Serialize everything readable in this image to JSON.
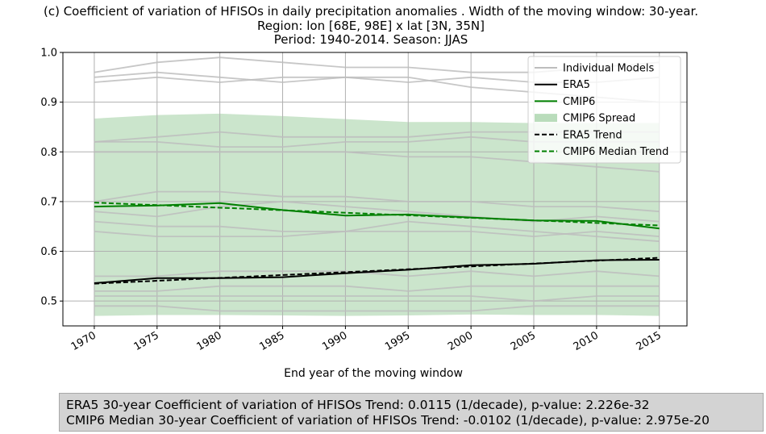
{
  "chart_data": {
    "type": "line",
    "title_lines": [
      "(c) Coefficient of variation of HFISOs in daily precipitation anomalies . Width of the moving window: 30-year.",
      "Region: lon [68E, 98E] x lat [3N, 35N]",
      "Period: 1940-2014. Season: JJAS"
    ],
    "xlabel": "End year of the moving window",
    "ylabel": "",
    "xlim": [
      1967.5,
      2017.2
    ],
    "ylim": [
      0.45,
      1.0
    ],
    "xticks": [
      1970,
      1975,
      1980,
      1985,
      1990,
      1995,
      2000,
      2005,
      2010,
      2015
    ],
    "yticks": [
      0.5,
      0.6,
      0.7,
      0.8,
      0.9,
      1.0
    ],
    "ytick_labels": [
      "0.5",
      "0.6",
      "0.7",
      "0.8",
      "0.9",
      "1.0"
    ],
    "grid": true,
    "legend_position": "top-right",
    "legend": [
      "Individual Models",
      "ERA5",
      "CMIP6",
      "CMIP6 Spread",
      "ERA5 Trend",
      "CMIP6 Median Trend"
    ],
    "colors": {
      "individual": "#bdbdbd",
      "era5": "#000000",
      "cmip6": "#008000",
      "spread": "#b9dcbb",
      "grid": "#b0b0b0"
    },
    "x_years": [
      1970,
      1975,
      1980,
      1985,
      1990,
      1995,
      2000,
      2005,
      2010,
      2015
    ],
    "series": [
      {
        "name": "ERA5",
        "values": [
          0.536,
          0.546,
          0.546,
          0.548,
          0.556,
          0.563,
          0.572,
          0.575,
          0.582,
          0.583
        ]
      },
      {
        "name": "CMIP6",
        "values": [
          0.69,
          0.692,
          0.697,
          0.683,
          0.672,
          0.674,
          0.668,
          0.662,
          0.661,
          0.646
        ]
      },
      {
        "name": "CMIP6 Spread",
        "lower": [
          0.47,
          0.472,
          0.472,
          0.471,
          0.47,
          0.471,
          0.473,
          0.472,
          0.472,
          0.47
        ],
        "upper": [
          0.867,
          0.874,
          0.877,
          0.872,
          0.866,
          0.86,
          0.86,
          0.858,
          0.858,
          0.858
        ]
      },
      {
        "name": "ERA5 Trend",
        "start": [
          1970,
          0.535
        ],
        "end": [
          2015,
          0.587
        ]
      },
      {
        "name": "CMIP6 Median Trend",
        "start": [
          1970,
          0.698
        ],
        "end": [
          2015,
          0.652
        ]
      }
    ],
    "individual_models": [
      [
        0.95,
        0.96,
        0.95,
        0.94,
        0.95,
        0.95,
        0.93,
        0.92,
        0.91,
        0.9
      ],
      [
        0.94,
        0.95,
        0.94,
        0.95,
        0.95,
        0.94,
        0.95,
        0.94,
        0.94,
        0.95
      ],
      [
        0.96,
        0.98,
        0.99,
        0.98,
        0.97,
        0.97,
        0.96,
        0.96,
        0.97,
        0.98
      ],
      [
        0.82,
        0.82,
        0.81,
        0.81,
        0.82,
        0.82,
        0.83,
        0.82,
        0.82,
        0.82
      ],
      [
        0.8,
        0.8,
        0.8,
        0.8,
        0.8,
        0.79,
        0.79,
        0.78,
        0.77,
        0.76
      ],
      [
        0.82,
        0.83,
        0.84,
        0.83,
        0.83,
        0.83,
        0.84,
        0.84,
        0.84,
        0.84
      ],
      [
        0.7,
        0.72,
        0.72,
        0.71,
        0.71,
        0.7,
        0.7,
        0.69,
        0.69,
        0.68
      ],
      [
        0.68,
        0.67,
        0.69,
        0.7,
        0.69,
        0.68,
        0.67,
        0.66,
        0.67,
        0.66
      ],
      [
        0.66,
        0.65,
        0.65,
        0.64,
        0.64,
        0.64,
        0.64,
        0.63,
        0.64,
        0.63
      ],
      [
        0.64,
        0.63,
        0.63,
        0.63,
        0.64,
        0.66,
        0.65,
        0.64,
        0.63,
        0.62
      ],
      [
        0.55,
        0.55,
        0.56,
        0.56,
        0.56,
        0.55,
        0.56,
        0.55,
        0.56,
        0.55
      ],
      [
        0.52,
        0.52,
        0.53,
        0.53,
        0.53,
        0.52,
        0.53,
        0.53,
        0.53,
        0.53
      ],
      [
        0.51,
        0.51,
        0.51,
        0.51,
        0.51,
        0.51,
        0.51,
        0.5,
        0.51,
        0.51
      ],
      [
        0.49,
        0.49,
        0.48,
        0.48,
        0.48,
        0.48,
        0.48,
        0.49,
        0.49,
        0.49
      ]
    ]
  },
  "stats": {
    "era5_line": "ERA5 30-year Coefficient of variation of HFISOs Trend: 0.0115 (1/decade), p-value: 2.226e-32",
    "cmip6_line": "CMIP6 Median 30-year Coefficient of variation of HFISOs Trend: -0.0102 (1/decade), p-value: 2.975e-20"
  }
}
